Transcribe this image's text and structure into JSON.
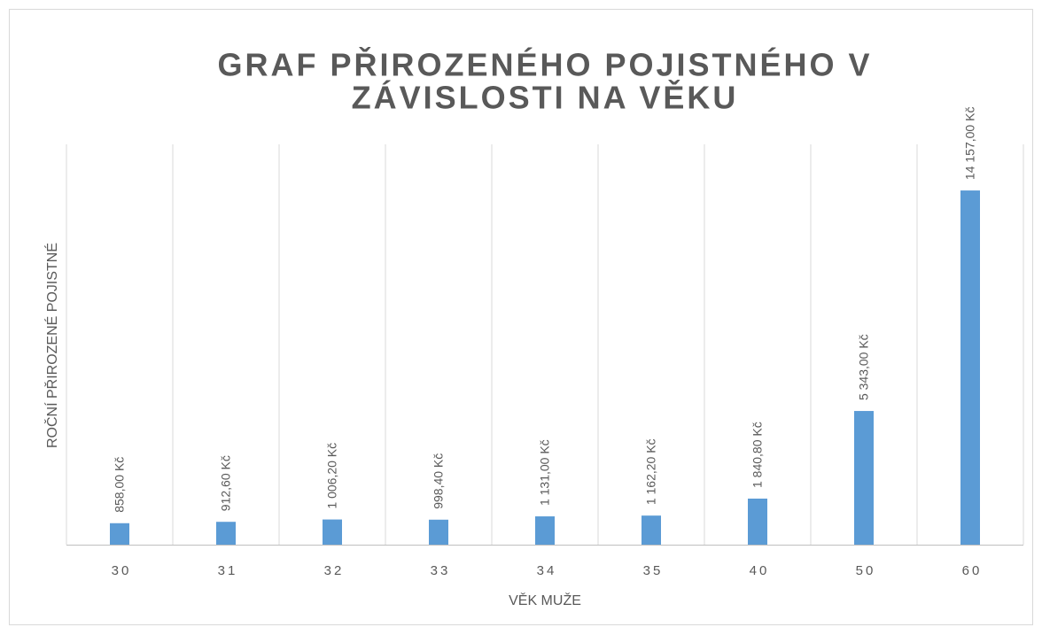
{
  "chart_data": {
    "type": "bar",
    "title": [
      "GRAF PŘIROZENÉHO POJISTNÉHO V",
      "ZÁVISLOSTI NA VĚKU"
    ],
    "x_label": "VĚK MUŽE",
    "y_label": "ROČNÍ PŘIROZENÉ POJISTNÉ",
    "categories": [
      "30",
      "31",
      "32",
      "33",
      "34",
      "35",
      "40",
      "50",
      "60"
    ],
    "values": [
      858,
      912.6,
      1006.2,
      998.4,
      1131,
      1162.2,
      1840.8,
      5343,
      14157
    ],
    "value_labels": [
      "858,00 Kč",
      "912,60 Kč",
      "1 006,20 Kč",
      "998,40 Kč",
      "1 131,00 Kč",
      "1 162,20 Kč",
      "1 840,80 Kč",
      "5 343,00 Kč",
      "14 157,00 Kč"
    ],
    "color": "#5b9bd5",
    "ylim": [
      0,
      16000
    ]
  }
}
